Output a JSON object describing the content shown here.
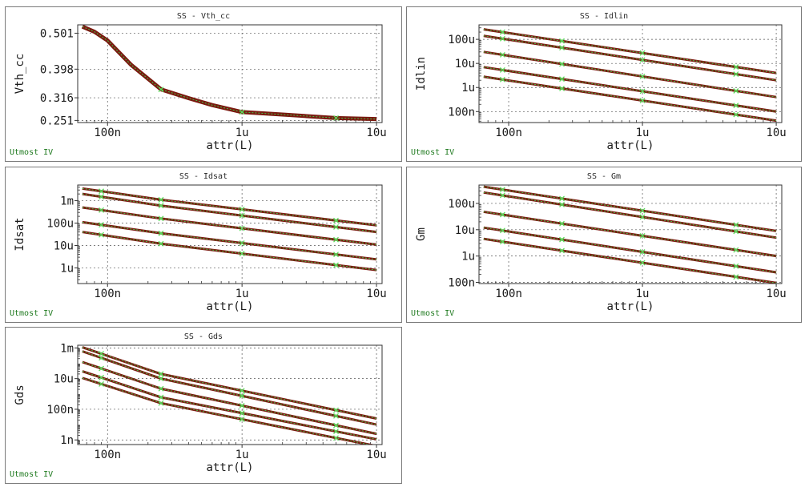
{
  "colors": {
    "curve_outer": "#7a1a10",
    "curve_inner": "#48c048",
    "marker": "#5cdc5c",
    "footer_text": "#1f7a1f",
    "grid": "#555555"
  },
  "chart_data": [
    {
      "type": "line",
      "title": "SS - Vth_cc",
      "xlabel": "attr(L)",
      "ylabel": "Vth_cc",
      "footer": "Utmost IV",
      "xscale": "log",
      "yscale": "linear",
      "xlim": [
        6e-08,
        1.1e-05
      ],
      "ylim": [
        0.245,
        0.525
      ],
      "xticks": [
        {
          "v": 1e-07,
          "label": "100n"
        },
        {
          "v": 1e-06,
          "label": "1u"
        },
        {
          "v": 1e-05,
          "label": "10u"
        }
      ],
      "yticks": [
        {
          "v": 0.251,
          "label": "0.251"
        },
        {
          "v": 0.316,
          "label": "0.316"
        },
        {
          "v": 0.398,
          "label": "0.398"
        },
        {
          "v": 0.501,
          "label": "0.501"
        }
      ],
      "series": [
        {
          "x": [
            6.5e-08,
            8e-08,
            1e-07,
            1.5e-07,
            2.5e-07,
            4e-07,
            6e-07,
            1e-06,
            2e-06,
            5e-06,
            1e-05
          ],
          "y": [
            0.52,
            0.505,
            0.48,
            0.41,
            0.34,
            0.315,
            0.295,
            0.275,
            0.268,
            0.258,
            0.255
          ],
          "markers_x": [
            2.5e-07,
            1e-06,
            5e-06
          ]
        }
      ]
    },
    {
      "type": "line",
      "title": "SS - Idlin",
      "xlabel": "attr(L)",
      "ylabel": "Idlin",
      "footer": "Utmost IV",
      "xscale": "log",
      "yscale": "log",
      "xlim": [
        6e-08,
        1.1e-05
      ],
      "ylim": [
        3.5e-08,
        0.0004
      ],
      "xticks": [
        {
          "v": 1e-07,
          "label": "100n"
        },
        {
          "v": 1e-06,
          "label": "1u"
        },
        {
          "v": 1e-05,
          "label": "10u"
        }
      ],
      "yticks": [
        {
          "v": 1e-07,
          "label": "100n"
        },
        {
          "v": 1e-06,
          "label": "1u"
        },
        {
          "v": 1e-05,
          "label": "10u"
        },
        {
          "v": 0.0001,
          "label": "100u"
        }
      ],
      "series": [
        {
          "x": [
            6.5e-08,
            1e-05
          ],
          "y": [
            0.00026,
            4e-06
          ],
          "markers_x": [
            9e-08,
            2.5e-07,
            1e-06,
            5e-06
          ]
        },
        {
          "x": [
            6.5e-08,
            1e-05
          ],
          "y": [
            0.00014,
            2e-06
          ],
          "markers_x": [
            9e-08,
            2.5e-07,
            1e-06,
            5e-06
          ]
        },
        {
          "x": [
            6.5e-08,
            1e-05
          ],
          "y": [
            3e-05,
            4e-07
          ],
          "markers_x": [
            9e-08,
            2.5e-07,
            1e-06,
            5e-06
          ]
        },
        {
          "x": [
            6.5e-08,
            1e-05
          ],
          "y": [
            7e-06,
            1e-07
          ],
          "markers_x": [
            9e-08,
            2.5e-07,
            1e-06,
            5e-06
          ]
        },
        {
          "x": [
            6.5e-08,
            1e-05
          ],
          "y": [
            2.8e-06,
            4.2e-08
          ],
          "markers_x": [
            9e-08,
            2.5e-07,
            1e-06,
            5e-06
          ]
        }
      ]
    },
    {
      "type": "line",
      "title": "SS - Idsat",
      "xlabel": "attr(L)",
      "ylabel": "Idsat",
      "footer": "Utmost IV",
      "xscale": "log",
      "yscale": "log",
      "xlim": [
        6e-08,
        1.1e-05
      ],
      "ylim": [
        2e-07,
        0.005
      ],
      "xticks": [
        {
          "v": 1e-07,
          "label": "100n"
        },
        {
          "v": 1e-06,
          "label": "1u"
        },
        {
          "v": 1e-05,
          "label": "10u"
        }
      ],
      "yticks": [
        {
          "v": 1e-06,
          "label": "1u"
        },
        {
          "v": 1e-05,
          "label": "10u"
        },
        {
          "v": 0.0001,
          "label": "100u"
        },
        {
          "v": 0.001,
          "label": "1m"
        }
      ],
      "series": [
        {
          "x": [
            6.5e-08,
            2.5e-07,
            1e-05
          ],
          "y": [
            0.0035,
            0.0011,
            8e-05
          ],
          "markers_x": [
            9e-08,
            2.5e-07,
            1e-06,
            5e-06
          ]
        },
        {
          "x": [
            6.5e-08,
            2.5e-07,
            1e-05
          ],
          "y": [
            0.002,
            0.0006,
            4e-05
          ],
          "markers_x": [
            9e-08,
            2.5e-07,
            1e-06,
            5e-06
          ]
        },
        {
          "x": [
            6.5e-08,
            2.5e-07,
            1e-05
          ],
          "y": [
            0.0005,
            0.00016,
            1.1e-05
          ],
          "markers_x": [
            9e-08,
            2.5e-07,
            1e-06,
            5e-06
          ]
        },
        {
          "x": [
            6.5e-08,
            2.5e-07,
            1e-05
          ],
          "y": [
            0.00011,
            3.5e-05,
            2.4e-06
          ],
          "markers_x": [
            9e-08,
            2.5e-07,
            1e-06,
            5e-06
          ]
        },
        {
          "x": [
            6.5e-08,
            2.5e-07,
            1e-05
          ],
          "y": [
            4e-05,
            1.2e-05,
            8e-07
          ],
          "markers_x": [
            9e-08,
            2.5e-07,
            1e-06,
            5e-06
          ]
        }
      ]
    },
    {
      "type": "line",
      "title": "SS - Gm",
      "xlabel": "attr(L)",
      "ylabel": "Gm",
      "footer": "Utmost IV",
      "xscale": "log",
      "yscale": "log",
      "xlim": [
        6e-08,
        1.1e-05
      ],
      "ylim": [
        9e-08,
        0.0005
      ],
      "xticks": [
        {
          "v": 1e-07,
          "label": "100n"
        },
        {
          "v": 1e-06,
          "label": "1u"
        },
        {
          "v": 1e-05,
          "label": "10u"
        }
      ],
      "yticks": [
        {
          "v": 1e-07,
          "label": "100n"
        },
        {
          "v": 1e-06,
          "label": "1u"
        },
        {
          "v": 1e-05,
          "label": "10u"
        },
        {
          "v": 0.0001,
          "label": "100u"
        }
      ],
      "series": [
        {
          "x": [
            6.5e-08,
            1e-05
          ],
          "y": [
            0.00043,
            9e-06
          ],
          "markers_x": [
            9e-08,
            2.5e-07,
            1e-06,
            5e-06
          ]
        },
        {
          "x": [
            6.5e-08,
            1e-05
          ],
          "y": [
            0.00026,
            5e-06
          ],
          "markers_x": [
            9e-08,
            2.5e-07,
            1e-06,
            5e-06
          ]
        },
        {
          "x": [
            6.5e-08,
            1e-05
          ],
          "y": [
            4.8e-05,
            1e-06
          ],
          "markers_x": [
            9e-08,
            2.5e-07,
            1e-06,
            5e-06
          ]
        },
        {
          "x": [
            6.5e-08,
            1e-05
          ],
          "y": [
            1.2e-05,
            2.4e-07
          ],
          "markers_x": [
            9e-08,
            2.5e-07,
            1e-06,
            5e-06
          ]
        },
        {
          "x": [
            6.5e-08,
            1e-05
          ],
          "y": [
            4.5e-06,
            9.5e-08
          ],
          "markers_x": [
            9e-08,
            2.5e-07,
            1e-06,
            5e-06
          ]
        }
      ]
    },
    {
      "type": "line",
      "title": "SS - Gds",
      "xlabel": "attr(L)",
      "ylabel": "Gds",
      "footer": "Utmost IV",
      "xscale": "log",
      "yscale": "log",
      "xlim": [
        6e-08,
        1.1e-05
      ],
      "ylim": [
        5e-10,
        0.0015
      ],
      "xticks": [
        {
          "v": 1e-07,
          "label": "100n"
        },
        {
          "v": 1e-06,
          "label": "1u"
        },
        {
          "v": 1e-05,
          "label": "10u"
        }
      ],
      "yticks": [
        {
          "v": 1e-09,
          "label": "1n"
        },
        {
          "v": 1e-07,
          "label": "100n"
        },
        {
          "v": 1e-05,
          "label": "10u"
        },
        {
          "v": 0.001,
          "label": "1m"
        }
      ],
      "series": [
        {
          "x": [
            6.5e-08,
            2.5e-07,
            1e-05
          ],
          "y": [
            0.0011,
            2e-05,
            2.5e-08
          ],
          "markers_x": [
            9e-08,
            2.5e-07,
            1e-06,
            5e-06
          ]
        },
        {
          "x": [
            6.5e-08,
            2.5e-07,
            1e-05
          ],
          "y": [
            0.0006,
            1e-05,
            1e-08
          ],
          "markers_x": [
            9e-08,
            2.5e-07,
            1e-06,
            5e-06
          ]
        },
        {
          "x": [
            6.5e-08,
            2.5e-07,
            1e-05
          ],
          "y": [
            0.00012,
            2.2e-06,
            2.5e-09
          ],
          "markers_x": [
            9e-08,
            2.5e-07,
            1e-06,
            5e-06
          ]
        },
        {
          "x": [
            6.5e-08,
            2.5e-07,
            1e-05
          ],
          "y": [
            3e-05,
            6e-07,
            1.1e-09
          ],
          "markers_x": [
            9e-08,
            2.5e-07,
            1e-06,
            5e-06
          ]
        },
        {
          "x": [
            6.5e-08,
            2.5e-07,
            1e-05
          ],
          "y": [
            1.1e-05,
            2.5e-07,
            4e-10
          ],
          "markers_x": [
            9e-08,
            2.5e-07,
            1e-06,
            5e-06
          ]
        }
      ]
    }
  ]
}
